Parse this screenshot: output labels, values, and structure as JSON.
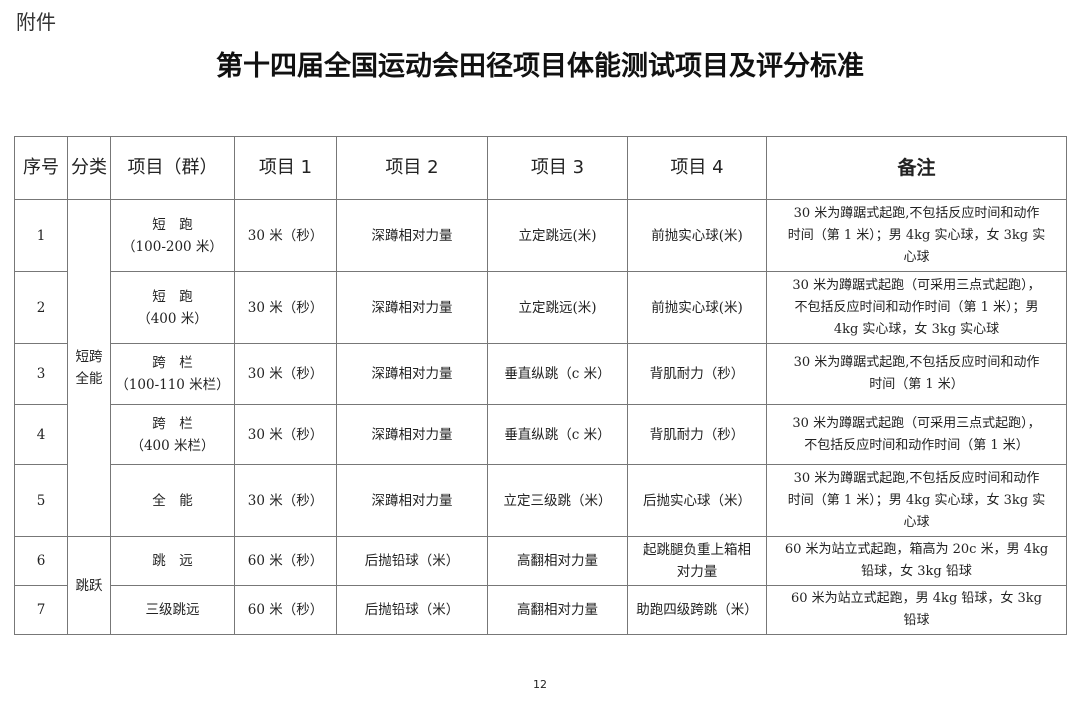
{
  "attachment_label": "附件",
  "title": "第十四届全国运动会田径项目体能测试项目及评分标准",
  "headers": [
    "序号",
    "分类",
    "项目（群）",
    "项目 1",
    "项目 2",
    "项目 3",
    "项目 4",
    "备注"
  ],
  "categories": [
    "短跨\n全能",
    "跳跃"
  ],
  "rows": [
    {
      "no": "1",
      "group": "短　跑\n（100-200 米）",
      "p1": "30 米（秒）",
      "p2": "深蹲相对力量",
      "p3": "立定跳远(米)",
      "p4": "前抛实心球(米)",
      "remark": "30 米为蹲踞式起跑,不包括反应时间和动作\n时间（第 1 米）；男 4kg 实心球，女 3kg 实\n心球"
    },
    {
      "no": "2",
      "group": "短　跑\n（400 米）",
      "p1": "30 米（秒）",
      "p2": "深蹲相对力量",
      "p3": "立定跳远(米)",
      "p4": "前抛实心球(米)",
      "remark": "30 米为蹲踞式起跑（可采用三点式起跑），\n不包括反应时间和动作时间（第 1 米）；男\n4kg 实心球，女 3kg 实心球"
    },
    {
      "no": "3",
      "group": "跨　栏\n（100-110 米栏）",
      "p1": "30 米（秒）",
      "p2": "深蹲相对力量",
      "p3": "垂直纵跳（c 米）",
      "p4": "背肌耐力（秒）",
      "remark": "30 米为蹲踞式起跑,不包括反应时间和动作\n时间（第 1 米）"
    },
    {
      "no": "4",
      "group": "跨　栏\n（400 米栏）",
      "p1": "30 米（秒）",
      "p2": "深蹲相对力量",
      "p3": "垂直纵跳（c 米）",
      "p4": "背肌耐力（秒）",
      "remark": "30 米为蹲踞式起跑（可采用三点式起跑），\n不包括反应时间和动作时间（第 1 米）"
    },
    {
      "no": "5",
      "group": "全　能",
      "p1": "30 米（秒）",
      "p2": "深蹲相对力量",
      "p3": "立定三级跳（米）",
      "p4": "后抛实心球（米）",
      "remark": "30 米为蹲踞式起跑,不包括反应时间和动作\n时间（第 1 米）；男 4kg 实心球，女 3kg 实\n心球"
    },
    {
      "no": "6",
      "group": "跳　远",
      "p1": "60 米（秒）",
      "p2": "后抛铅球（米）",
      "p3": "高翻相对力量",
      "p4": "起跳腿负重上箱相\n对力量",
      "remark": "60 米为站立式起跑，箱高为 20c 米，男 4kg\n铅球，女 3kg 铅球"
    },
    {
      "no": "7",
      "group": "三级跳远",
      "p1": "60 米（秒）",
      "p2": "后抛铅球（米）",
      "p3": "高翻相对力量",
      "p4": "助跑四级跨跳（米）",
      "remark": "60 米为站立式起跑，男 4kg 铅球，女 3kg\n铅球"
    }
  ],
  "page_number": "12"
}
